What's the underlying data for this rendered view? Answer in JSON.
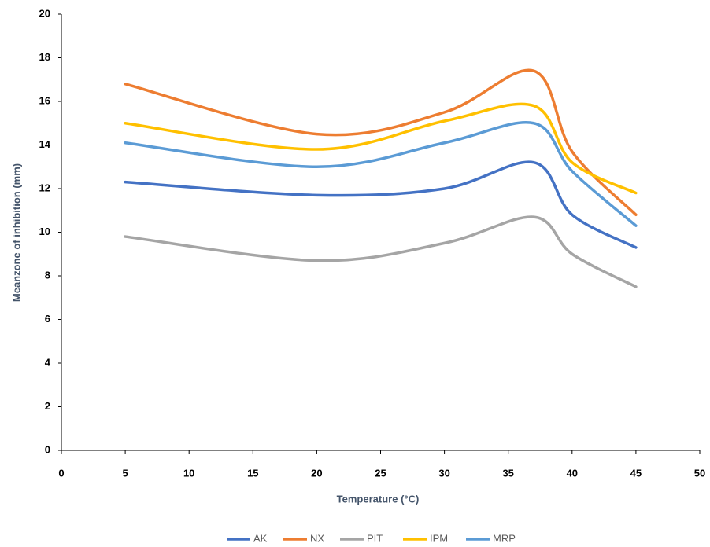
{
  "chart_data": {
    "type": "line",
    "x_label": "Temperature (°C)",
    "y_label": "Meanzone of inhibition (mm)",
    "x": [
      5,
      20,
      30,
      37,
      40,
      45
    ],
    "series": [
      {
        "name": "AK",
        "color": "#4472c4",
        "values": [
          12.3,
          11.7,
          12.0,
          13.2,
          10.8,
          9.3
        ]
      },
      {
        "name": "NX",
        "color": "#ed7d31",
        "values": [
          16.8,
          14.5,
          15.5,
          17.4,
          13.7,
          10.8
        ]
      },
      {
        "name": "PIT",
        "color": "#a5a5a5",
        "values": [
          9.8,
          8.7,
          9.5,
          10.7,
          9.0,
          7.5
        ]
      },
      {
        "name": "IPM",
        "color": "#ffc000",
        "values": [
          15.0,
          13.8,
          15.1,
          15.8,
          13.2,
          11.8
        ]
      },
      {
        "name": "MRP",
        "color": "#5b9bd5",
        "values": [
          14.1,
          13.0,
          14.1,
          15.0,
          12.8,
          10.3
        ]
      }
    ],
    "xlim": [
      0,
      50
    ],
    "xticks": [
      0,
      5,
      10,
      15,
      20,
      25,
      30,
      35,
      40,
      45,
      50
    ],
    "ylim": [
      0,
      20
    ],
    "yticks": [
      0,
      2,
      4,
      6,
      8,
      10,
      12,
      14,
      16,
      18,
      20
    ],
    "legend": "bottom"
  }
}
